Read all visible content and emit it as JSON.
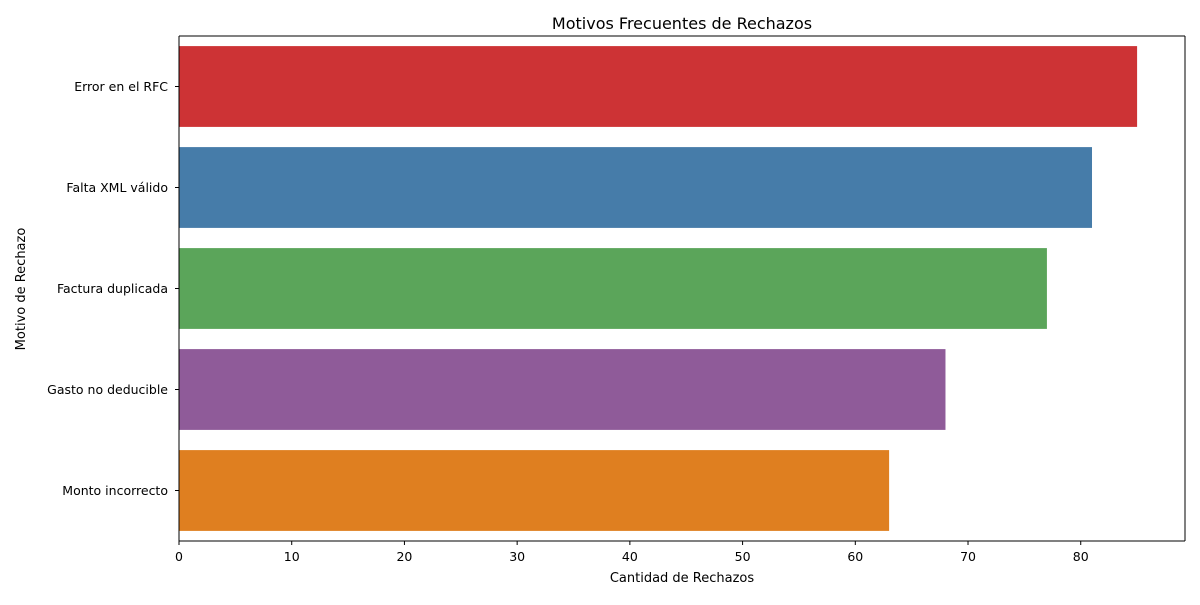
{
  "chart_data": {
    "type": "bar",
    "orientation": "horizontal",
    "title": "Motivos Frecuentes de Rechazos",
    "xlabel": "Cantidad de Rechazos",
    "ylabel": "Motivo de Rechazo",
    "categories": [
      "Error en el RFC",
      "Falta XML válido",
      "Factura duplicada",
      "Gasto no deducible",
      "Monto incorrecto"
    ],
    "values": [
      85,
      81,
      77,
      68,
      63
    ],
    "colors": [
      "#cd3335",
      "#467ca9",
      "#5ba55a",
      "#8f5b99",
      "#df7f20"
    ],
    "xticks": [
      0,
      10,
      20,
      30,
      40,
      50,
      60,
      70,
      80
    ],
    "xlim": [
      0,
      89.25
    ],
    "grid": false,
    "legend": "none"
  }
}
